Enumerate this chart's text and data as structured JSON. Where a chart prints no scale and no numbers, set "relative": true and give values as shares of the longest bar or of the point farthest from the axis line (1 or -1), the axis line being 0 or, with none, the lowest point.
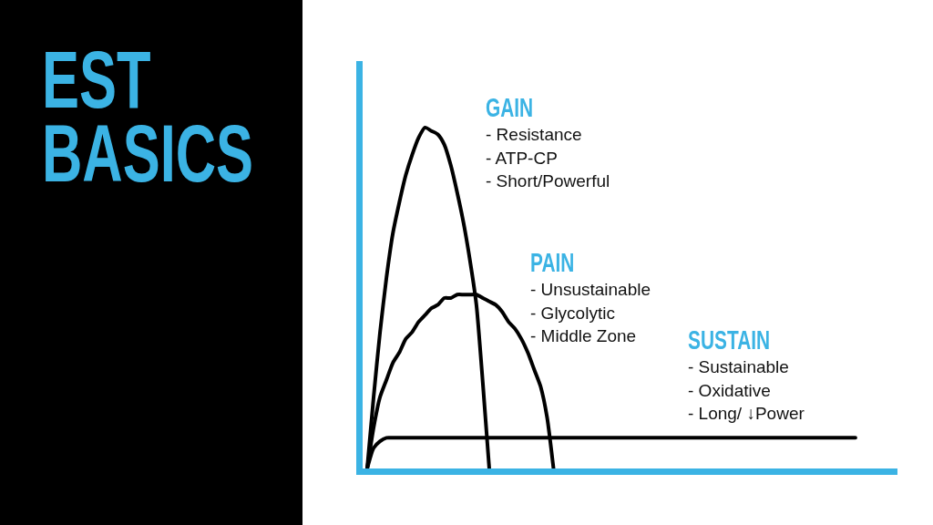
{
  "chart_data": {
    "type": "line",
    "title": "EST BASICS",
    "relative": true,
    "marker": "none",
    "line_style": "solid",
    "categories": [
      null,
      null,
      null,
      null,
      null,
      null,
      null,
      null,
      null,
      null,
      null,
      null,
      null,
      null,
      null,
      null,
      null,
      null,
      null,
      null,
      null,
      null,
      null,
      null,
      null,
      null,
      null,
      null,
      null,
      null,
      null,
      null,
      null,
      null,
      null,
      null,
      null,
      null,
      null,
      null,
      null,
      null,
      null,
      null,
      null,
      null,
      null,
      null,
      null,
      null,
      null,
      null,
      null,
      null,
      null,
      null,
      null,
      null,
      null,
      null,
      null,
      null,
      null,
      null,
      null,
      null,
      null,
      null,
      null,
      null,
      null,
      null,
      null,
      null,
      null,
      null,
      null
    ],
    "series": [
      {
        "color": "#000000",
        "values": [
          0,
          0.21,
          0.4,
          0.56,
          0.69,
          0.78,
          0.86,
          0.92,
          0.97,
          1.0,
          0.99,
          0.98,
          0.95,
          0.89,
          0.81,
          0.72,
          0.61,
          0.48,
          0.25,
          0,
          null,
          null,
          null,
          null,
          null,
          null,
          null,
          null,
          null,
          null,
          null,
          null,
          null,
          null,
          null,
          null,
          null,
          null,
          null,
          null,
          null,
          null,
          null,
          null,
          null,
          null,
          null,
          null,
          null,
          null,
          null,
          null,
          null,
          null,
          null,
          null,
          null,
          null,
          null,
          null,
          null,
          null,
          null,
          null,
          null,
          null,
          null,
          null,
          null,
          null,
          null,
          null,
          null,
          null,
          null,
          null,
          null
        ]
      },
      {
        "color": "#000000",
        "values": [
          0,
          0.12,
          0.21,
          0.26,
          0.31,
          0.34,
          0.38,
          0.4,
          0.43,
          0.45,
          0.47,
          0.48,
          0.5,
          0.5,
          0.51,
          0.51,
          0.51,
          0.51,
          0.5,
          0.49,
          0.48,
          0.46,
          0.43,
          0.41,
          0.38,
          0.34,
          0.29,
          0.24,
          0.15,
          0,
          null,
          null,
          null,
          null,
          null,
          null,
          null,
          null,
          null,
          null,
          null,
          null,
          null,
          null,
          null,
          null,
          null,
          null,
          null,
          null,
          null,
          null,
          null,
          null,
          null,
          null,
          null,
          null,
          null,
          null,
          null,
          null,
          null,
          null,
          null,
          null,
          null,
          null,
          null,
          null,
          null,
          null,
          null,
          null,
          null,
          null,
          null
        ]
      },
      {
        "color": "#000000",
        "values": [
          0,
          0.06,
          0.08,
          0.09,
          0.09,
          0.09,
          0.09,
          0.09,
          0.09,
          0.09,
          0.09,
          0.09,
          0.09,
          0.09,
          0.09,
          0.09,
          0.09,
          0.09,
          0.09,
          0.09,
          0.09,
          0.09,
          0.09,
          0.09,
          0.09,
          0.09,
          0.09,
          0.09,
          0.09,
          0.09,
          0.09,
          0.09,
          0.09,
          0.09,
          0.09,
          0.09,
          0.09,
          0.09,
          0.09,
          0.09,
          0.09,
          0.09,
          0.09,
          0.09,
          0.09,
          0.09,
          0.09,
          0.09,
          0.09,
          0.09,
          0.09,
          0.09,
          0.09,
          0.09,
          0.09,
          0.09,
          0.09,
          0.09,
          0.09,
          0.09,
          0.09,
          0.09,
          0.09,
          0.09,
          0.09,
          0.09,
          0.09,
          0.09,
          0.09,
          0.09,
          0.09,
          0.09,
          0.09,
          0.09,
          0.09,
          0.09,
          0.09
        ]
      }
    ],
    "annotations": [
      "GAIN",
      "- Resistance\n- ATP-CP\n- Short/Powerful",
      "PAIN",
      "- Unsustainable\n- Glycolytic\n- Middle Zone",
      "SUSTAIN",
      "- Sustainable\n- Oxidative\n- Long/ ↓Power"
    ]
  }
}
